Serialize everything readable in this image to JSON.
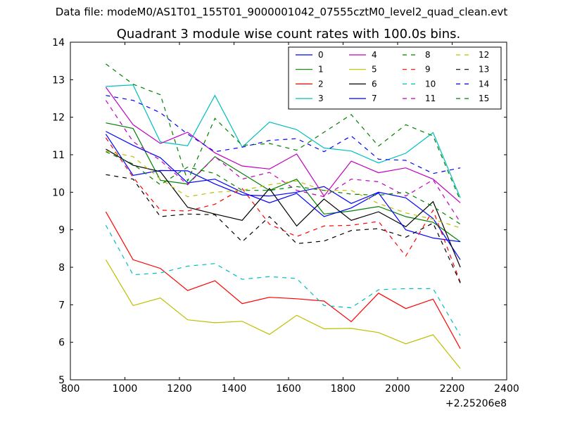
{
  "figure": {
    "suptitle": "Data file: modeM0/AS1T01_155T01_9000001042_07555cztM0_level2_quad_clean.evt"
  },
  "chart_data": {
    "type": "line",
    "title": "Quadrant 3 module wise count rates with 100.0s bins.",
    "xlabel": "",
    "ylabel": "",
    "x_offset_label": "+2.25206e8",
    "xlim": [
      800,
      2400
    ],
    "ylim": [
      5,
      14
    ],
    "xticks": [
      "800",
      "1000",
      "1200",
      "1400",
      "1600",
      "1800",
      "2000",
      "2200",
      "2400"
    ],
    "yticks": [
      "5",
      "6",
      "7",
      "8",
      "9",
      "10",
      "11",
      "12",
      "13",
      "14"
    ],
    "legend_position": "top-right",
    "grid": false,
    "x": [
      930,
      1030,
      1130,
      1230,
      1330,
      1430,
      1530,
      1630,
      1730,
      1830,
      1930,
      2030,
      2130,
      2230
    ],
    "series": [
      {
        "name": "0",
        "color": "#0000ff",
        "dash": "solid",
        "values": [
          11.55,
          10.45,
          10.58,
          10.57,
          10.22,
          9.93,
          9.9,
          10.0,
          10.15,
          9.7,
          10.0,
          9.85,
          9.3,
          8.2
        ]
      },
      {
        "name": "1",
        "color": "#008000",
        "dash": "solid",
        "values": [
          11.85,
          11.7,
          10.32,
          10.22,
          10.95,
          10.5,
          10.05,
          10.35,
          9.42,
          9.5,
          9.62,
          9.35,
          9.2,
          8.68
        ]
      },
      {
        "name": "2",
        "color": "#ff0000",
        "dash": "solid",
        "values": [
          9.48,
          8.2,
          7.97,
          7.38,
          7.64,
          7.03,
          7.2,
          7.16,
          7.1,
          6.55,
          7.31,
          6.9,
          7.15,
          5.83
        ]
      },
      {
        "name": "3",
        "color": "#00bfbf",
        "dash": "solid",
        "values": [
          12.82,
          12.86,
          11.34,
          11.24,
          12.58,
          11.2,
          11.87,
          11.67,
          11.18,
          11.1,
          10.78,
          11.04,
          11.59,
          9.85
        ]
      },
      {
        "name": "4",
        "color": "#bf00bf",
        "dash": "solid",
        "values": [
          12.8,
          11.8,
          11.3,
          11.6,
          11.05,
          10.7,
          10.62,
          11.02,
          9.9,
          10.83,
          10.52,
          10.65,
          10.35,
          9.72
        ]
      },
      {
        "name": "5",
        "color": "#bfbf00",
        "dash": "solid",
        "values": [
          8.2,
          6.98,
          7.18,
          6.6,
          6.52,
          6.56,
          6.21,
          6.72,
          6.36,
          6.37,
          6.26,
          5.96,
          6.2,
          5.3
        ]
      },
      {
        "name": "6",
        "color": "#000000",
        "dash": "solid",
        "values": [
          11.15,
          10.72,
          10.55,
          9.6,
          9.42,
          9.25,
          10.1,
          9.1,
          9.82,
          9.25,
          9.48,
          9.08,
          9.75,
          8.0
        ]
      },
      {
        "name": "7",
        "color": "#0000ff",
        "dash": "solid",
        "values": [
          11.62,
          11.25,
          10.92,
          10.25,
          10.35,
          10.0,
          9.72,
          9.97,
          9.35,
          9.58,
          9.98,
          9.0,
          8.78,
          8.68
        ]
      },
      {
        "name": "8",
        "color": "#008000",
        "dash": "dashed",
        "values": [
          13.42,
          12.88,
          12.6,
          10.3,
          11.97,
          11.25,
          11.3,
          11.12,
          11.6,
          12.07,
          11.23,
          11.8,
          11.5,
          9.78
        ]
      },
      {
        "name": "9",
        "color": "#ff0000",
        "dash": "dashed",
        "values": [
          11.45,
          10.4,
          9.52,
          9.5,
          9.68,
          10.1,
          9.15,
          8.82,
          9.1,
          9.12,
          9.22,
          8.3,
          9.52,
          7.6
        ]
      },
      {
        "name": "10",
        "color": "#00bfbf",
        "dash": "dashed",
        "values": [
          9.12,
          7.8,
          7.85,
          8.03,
          8.1,
          7.68,
          7.75,
          7.7,
          6.98,
          6.92,
          7.4,
          7.43,
          7.43,
          6.18
        ]
      },
      {
        "name": "11",
        "color": "#bf00bf",
        "dash": "dashed",
        "values": [
          12.45,
          11.35,
          10.85,
          10.2,
          10.95,
          10.35,
          10.53,
          10.05,
          9.88,
          10.35,
          10.28,
          9.9,
          10.33,
          9.2
        ]
      },
      {
        "name": "12",
        "color": "#bfbf00",
        "dash": "dashed",
        "values": [
          11.1,
          10.95,
          10.35,
          9.88,
          10.0,
          10.05,
          10.2,
          10.3,
          10.05,
          10.05,
          9.7,
          9.45,
          9.28,
          9.05
        ]
      },
      {
        "name": "13",
        "color": "#000000",
        "dash": "dashed",
        "values": [
          10.47,
          10.35,
          9.35,
          9.42,
          9.4,
          8.68,
          9.35,
          8.63,
          8.7,
          8.98,
          9.03,
          8.8,
          9.18,
          7.58
        ]
      },
      {
        "name": "14",
        "color": "#0000ff",
        "dash": "dashed",
        "values": [
          12.58,
          12.45,
          12.12,
          11.55,
          11.08,
          11.2,
          11.38,
          11.43,
          11.08,
          11.5,
          10.88,
          10.85,
          10.5,
          10.65
        ]
      },
      {
        "name": "15",
        "color": "#008000",
        "dash": "dashed",
        "values": [
          11.08,
          10.75,
          10.2,
          10.67,
          10.5,
          10.05,
          10.05,
          10.15,
          10.05,
          9.95,
          9.92,
          10.0,
          9.62,
          9.15
        ]
      }
    ]
  }
}
